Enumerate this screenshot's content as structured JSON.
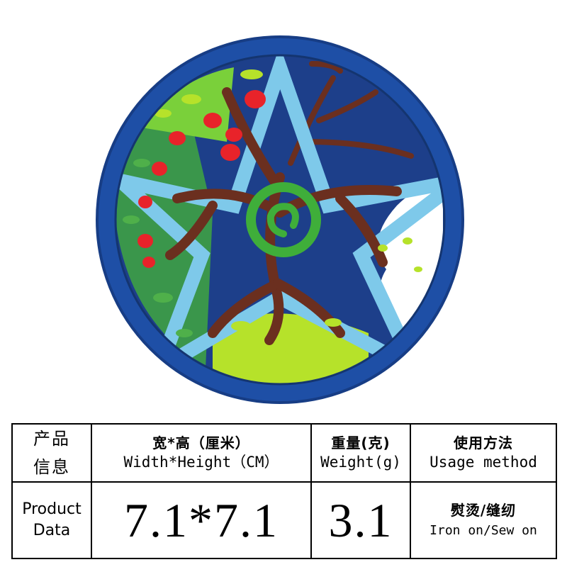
{
  "image": {
    "subject": "embroidered-patch",
    "colors": {
      "border": "#1e4fa6",
      "background": "#1d3f8a",
      "star": "#7ec9ea",
      "trunk": "#6b2f1f",
      "spiral": "#3fae3a",
      "leaf_light": "#b6e22a",
      "leaf_dark": "#4fb04a",
      "fruit": "#e8232a",
      "cloud": "#ffffff"
    }
  },
  "table": {
    "row_label_cn": [
      "产品",
      "信息"
    ],
    "row_label_en": [
      "Product",
      "Data"
    ],
    "size_header_cn": "宽*高（厘米）",
    "size_header_en": "Width*Height（CM）",
    "weight_header_cn": "重量(克)",
    "weight_header_en": "Weight(g)",
    "usage_header_cn": "使用方法",
    "usage_header_en": "Usage method",
    "size_value": "7.1*7.1",
    "weight_value": "3.1",
    "usage_value_cn": "熨烫/缝纫",
    "usage_value_en": "Iron on/Sew on"
  }
}
